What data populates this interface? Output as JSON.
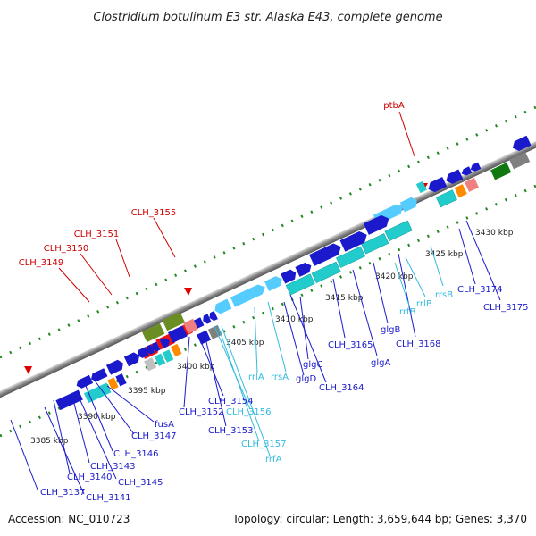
{
  "title": "Clostridium botulinum E3 str. Alaska E43, complete genome",
  "accession": "Accession: NC_010723",
  "topology": "Topology: circular; Length: 3,659,644 bp; Genes: 3,370",
  "colors": {
    "red": "#cc0000",
    "darkblue": "#1a1acc",
    "cyan": "#33bbdd",
    "lightblue": "#55ccff",
    "olive": "#6b8e23",
    "teal": "#22cccc",
    "salmon": "#f08080",
    "orange": "#ff8c00",
    "gray": "#808080",
    "darkgreen": "#117711",
    "silver": "#c0c0c0"
  },
  "ticks": [
    "3385 kbp",
    "3390 kbp",
    "3395 kbp",
    "3400 kbp",
    "3405 kbp",
    "3410 kbp",
    "3415 kbp",
    "3420 kbp",
    "3425 kbp",
    "3430 kbp"
  ],
  "labels": {
    "red": [
      "ptbA",
      "CLH_3155",
      "CLH_3151",
      "CLH_3150",
      "CLH_3149"
    ],
    "blue": [
      "CLH_3174",
      "CLH_3175",
      "CLH_3168",
      "glgB",
      "glgA",
      "CLH_3165",
      "CLH_3164",
      "glgC",
      "glgD",
      "CLH_3154",
      "CLH_3152",
      "CLH_3153",
      "fusA",
      "CLH_3147",
      "CLH_3146",
      "CLH_3143",
      "CLH_3145",
      "CLH_3140",
      "CLH_3141",
      "CLH_3137"
    ],
    "cyan": [
      "rrsB",
      "rrlB",
      "rrfB",
      "rrsA",
      "rrlA",
      "CLH_3156",
      "CLH_3157",
      "rrfA"
    ]
  }
}
